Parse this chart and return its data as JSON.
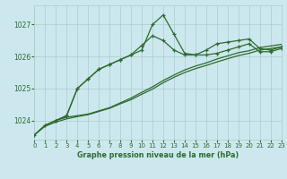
{
  "background_color": "#cce8ee",
  "grid_color": "#aacccc",
  "line_color": "#2d6a2d",
  "title": "Graphe pression niveau de la mer (hPa)",
  "xlim": [
    0,
    23
  ],
  "ylim": [
    1023.4,
    1027.6
  ],
  "yticks": [
    1024,
    1025,
    1026,
    1027
  ],
  "xticks": [
    0,
    1,
    2,
    3,
    4,
    5,
    6,
    7,
    8,
    9,
    10,
    11,
    12,
    13,
    14,
    15,
    16,
    17,
    18,
    19,
    20,
    21,
    22,
    23
  ],
  "series1_x": [
    0,
    1,
    2,
    3,
    4,
    5,
    6,
    7,
    8,
    9,
    10,
    11,
    12,
    13,
    14,
    15,
    16,
    17,
    18,
    19,
    20,
    21,
    22,
    23
  ],
  "series1_y": [
    1023.55,
    1023.85,
    1024.0,
    1024.15,
    1025.0,
    1025.3,
    1025.6,
    1025.75,
    1025.9,
    1026.05,
    1026.2,
    1027.0,
    1027.3,
    1026.7,
    1026.1,
    1026.05,
    1026.05,
    1026.1,
    1026.2,
    1026.3,
    1026.4,
    1026.15,
    1026.15,
    1026.25
  ],
  "series2_x": [
    2,
    3,
    4,
    5,
    6,
    7,
    8,
    9,
    10,
    11,
    12,
    13,
    14,
    15,
    16,
    17,
    18,
    19,
    20,
    21,
    22,
    23
  ],
  "series2_y": [
    1024.0,
    1024.15,
    1025.0,
    1025.3,
    1025.6,
    1025.75,
    1025.9,
    1026.05,
    1026.35,
    1026.65,
    1026.5,
    1026.2,
    1026.05,
    1026.05,
    1026.2,
    1026.4,
    1026.45,
    1026.5,
    1026.55,
    1026.25,
    1026.2,
    1026.3
  ],
  "series3_x": [
    0,
    1,
    2,
    3,
    4,
    5,
    6,
    7,
    8,
    9,
    10,
    11,
    12,
    13,
    14,
    15,
    16,
    17,
    18,
    19,
    20,
    21,
    22,
    23
  ],
  "series3_y": [
    1023.55,
    1023.85,
    1024.0,
    1024.1,
    1024.15,
    1024.2,
    1024.3,
    1024.4,
    1024.55,
    1024.7,
    1024.88,
    1025.05,
    1025.25,
    1025.42,
    1025.58,
    1025.7,
    1025.8,
    1025.92,
    1026.02,
    1026.12,
    1026.18,
    1026.28,
    1026.33,
    1026.38
  ],
  "series4_x": [
    0,
    1,
    2,
    3,
    4,
    5,
    6,
    7,
    8,
    9,
    10,
    11,
    12,
    13,
    14,
    15,
    16,
    17,
    18,
    19,
    20,
    21,
    22,
    23
  ],
  "series4_y": [
    1023.55,
    1023.82,
    1023.95,
    1024.05,
    1024.12,
    1024.18,
    1024.28,
    1024.38,
    1024.52,
    1024.65,
    1024.82,
    1024.98,
    1025.18,
    1025.35,
    1025.5,
    1025.62,
    1025.72,
    1025.83,
    1025.93,
    1026.03,
    1026.1,
    1026.2,
    1026.25,
    1026.3
  ]
}
